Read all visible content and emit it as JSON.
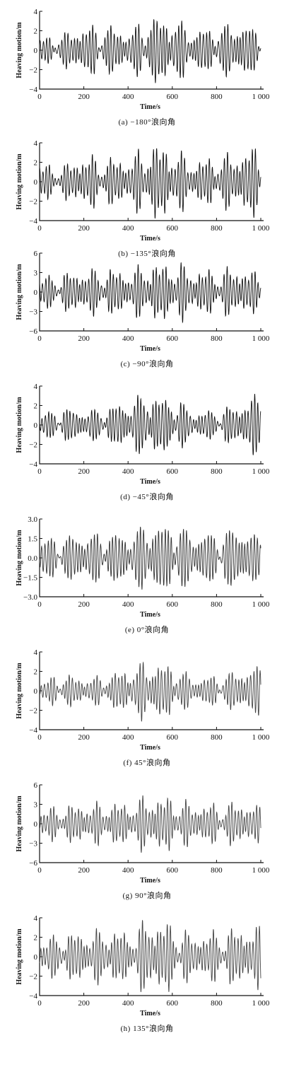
{
  "chart_data": [
    {
      "type": "line",
      "caption": "(a) −180°浪向角",
      "xlabel": "Time/s",
      "ylabel": "Heaving motion/m",
      "xlim": [
        0,
        1000
      ],
      "ylim": [
        -4,
        4
      ],
      "xticks": [
        "0",
        "200",
        "400",
        "600",
        "800",
        "1 000"
      ],
      "yticks": [
        "4",
        "2",
        "0",
        "−2",
        "−4"
      ],
      "ytick_values": [
        4,
        2,
        0,
        -2,
        -4
      ],
      "line_color": "#111111",
      "envelope": {
        "t": [
          0,
          100,
          200,
          300,
          400,
          500,
          550,
          600,
          700,
          800,
          900,
          1000
        ],
        "amp": [
          1.2,
          1.6,
          2.4,
          2.6,
          1.8,
          3.6,
          3.2,
          3.4,
          2.0,
          2.4,
          2.8,
          2.0
        ]
      }
    },
    {
      "type": "line",
      "caption": "(b) −135°浪向角",
      "xlabel": "Time/s",
      "ylabel": "Heaving motion/m",
      "xlim": [
        0,
        1000
      ],
      "ylim": [
        -4,
        4
      ],
      "xticks": [
        "0",
        "200",
        "400",
        "600",
        "800",
        "1 000"
      ],
      "yticks": [
        "4",
        "2",
        "0",
        "−2",
        "−4"
      ],
      "ytick_values": [
        4,
        2,
        0,
        -2,
        -4
      ],
      "line_color": "#111111",
      "envelope": {
        "t": [
          0,
          100,
          200,
          300,
          400,
          500,
          550,
          600,
          700,
          800,
          900,
          1000
        ],
        "amp": [
          1.8,
          1.5,
          2.6,
          2.4,
          2.2,
          3.9,
          3.6,
          3.4,
          2.0,
          2.6,
          2.8,
          3.8
        ]
      }
    },
    {
      "type": "line",
      "caption": "(c) −90°浪向角",
      "xlabel": "Time/s",
      "ylabel": "Heaving motion/m",
      "xlim": [
        0,
        1000
      ],
      "ylim": [
        -6,
        6
      ],
      "xticks": [
        "0",
        "200",
        "400",
        "600",
        "800",
        "1 000"
      ],
      "yticks": [
        "6",
        "3",
        "0",
        "−3",
        "−6"
      ],
      "ytick_values": [
        6,
        3,
        0,
        -3,
        -6
      ],
      "line_color": "#111111",
      "envelope": {
        "t": [
          0,
          100,
          200,
          300,
          400,
          500,
          550,
          600,
          700,
          800,
          900,
          1000
        ],
        "amp": [
          2.2,
          2.8,
          3.2,
          3.6,
          3.0,
          4.6,
          4.0,
          4.8,
          3.2,
          3.4,
          3.6,
          2.8
        ]
      }
    },
    {
      "type": "line",
      "caption": "(d) −45°浪向角",
      "xlabel": "Time/s",
      "ylabel": "Heaving motion/m",
      "xlim": [
        0,
        1000
      ],
      "ylim": [
        -4,
        4
      ],
      "xticks": [
        "0",
        "200",
        "400",
        "600",
        "800",
        "1 000"
      ],
      "yticks": [
        "4",
        "2",
        "0",
        "−2",
        "−4"
      ],
      "ytick_values": [
        4,
        2,
        0,
        -2,
        -4
      ],
      "line_color": "#111111",
      "envelope": {
        "t": [
          0,
          100,
          200,
          300,
          400,
          500,
          550,
          600,
          700,
          800,
          900,
          1000
        ],
        "amp": [
          1.0,
          1.8,
          1.4,
          1.8,
          2.4,
          3.5,
          2.6,
          3.1,
          1.2,
          1.6,
          2.0,
          3.4
        ]
      }
    },
    {
      "type": "line",
      "caption": "(e) 0°浪向角",
      "xlabel": "Time/s",
      "ylabel": "Heaving motion/m",
      "xlim": [
        0,
        1000
      ],
      "ylim": [
        -3,
        3
      ],
      "xticks": [
        "0",
        "200",
        "400",
        "600",
        "800",
        "1 000"
      ],
      "yticks": [
        "3.0",
        "1.5",
        "0.0",
        "−1.5",
        "−3.0"
      ],
      "ytick_values": [
        3,
        1.5,
        0,
        -1.5,
        -3
      ],
      "line_color": "#333333",
      "envelope": {
        "t": [
          0,
          100,
          200,
          300,
          400,
          500,
          550,
          600,
          700,
          800,
          900,
          1000
        ],
        "amp": [
          1.4,
          1.7,
          1.8,
          2.0,
          1.8,
          2.9,
          2.4,
          2.9,
          1.8,
          2.0,
          2.4,
          1.6
        ]
      }
    },
    {
      "type": "line",
      "caption": "(f) 45°浪向角",
      "xlabel": "Time/s",
      "ylabel": "Heaving motion/m",
      "xlim": [
        0,
        1000
      ],
      "ylim": [
        -4,
        4
      ],
      "xticks": [
        "0",
        "200",
        "400",
        "600",
        "800",
        "1 000"
      ],
      "yticks": [
        "4",
        "2",
        "0",
        "−2",
        "−4"
      ],
      "ytick_values": [
        4,
        2,
        0,
        -2,
        -4
      ],
      "line_color": "#444444",
      "envelope": {
        "t": [
          0,
          100,
          200,
          300,
          400,
          500,
          550,
          600,
          700,
          800,
          900,
          1000
        ],
        "amp": [
          0.8,
          1.8,
          1.2,
          1.6,
          2.2,
          3.2,
          2.6,
          2.8,
          1.2,
          1.6,
          2.0,
          2.6
        ]
      }
    },
    {
      "type": "line",
      "caption": "(g) 90°浪向角",
      "xlabel": "Time/s",
      "ylabel": "Heaving motion/m",
      "xlim": [
        0,
        1000
      ],
      "ylim": [
        -6,
        6
      ],
      "xticks": [
        "0",
        "200",
        "400",
        "600",
        "800",
        "1 000"
      ],
      "yticks": [
        "6",
        "3",
        "0",
        "−3",
        "−6"
      ],
      "ytick_values": [
        6,
        3,
        0,
        -3,
        -6
      ],
      "line_color": "#444444",
      "envelope": {
        "t": [
          0,
          100,
          200,
          300,
          400,
          500,
          550,
          600,
          700,
          800,
          900,
          1000
        ],
        "amp": [
          2.0,
          2.8,
          2.8,
          3.2,
          3.0,
          4.4,
          3.8,
          4.2,
          2.8,
          3.0,
          3.2,
          2.6
        ]
      }
    },
    {
      "type": "line",
      "caption": "(h) 135°浪向角",
      "xlabel": "Time/s",
      "ylabel": "Heaving motion/m",
      "xlim": [
        0,
        1000
      ],
      "ylim": [
        -4,
        4
      ],
      "xticks": [
        "0",
        "200",
        "400",
        "600",
        "800",
        "1 000"
      ],
      "yticks": [
        "4",
        "2",
        "0",
        "−2",
        "−4"
      ],
      "ytick_values": [
        4,
        2,
        0,
        -2,
        -4
      ],
      "line_color": "#444444",
      "envelope": {
        "t": [
          0,
          100,
          200,
          300,
          400,
          500,
          550,
          600,
          700,
          800,
          900,
          1000
        ],
        "amp": [
          1.6,
          2.4,
          2.4,
          2.8,
          2.4,
          3.9,
          3.4,
          3.4,
          2.0,
          2.6,
          2.8,
          3.0
        ]
      }
    }
  ]
}
